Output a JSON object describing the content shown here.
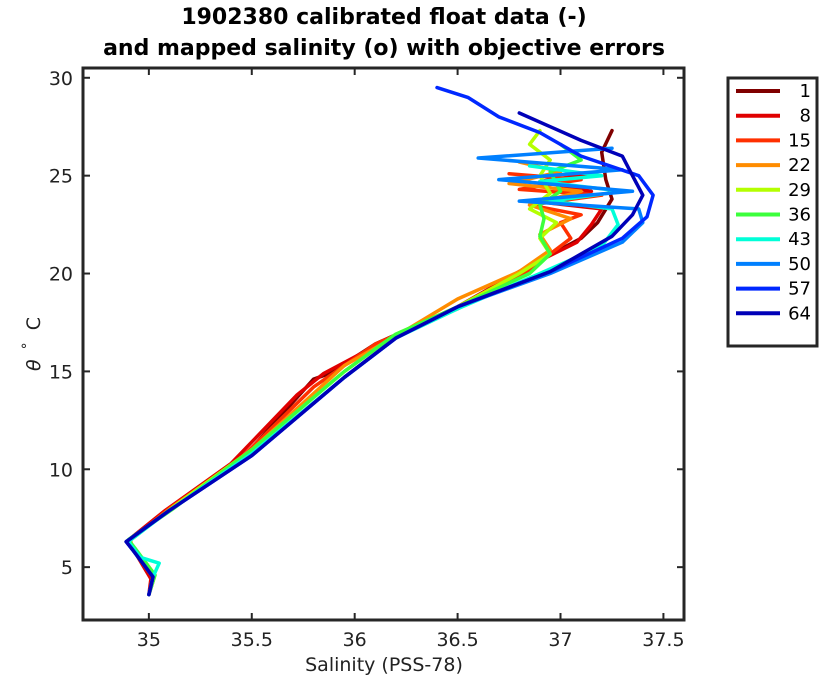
{
  "chart_data": {
    "type": "line",
    "title": "1902380 calibrated float data (-)",
    "subtitle": "and mapped salinity (o) with objective errors",
    "xlabel": "Salinity (PSS-78)",
    "ylabel_symbol": "θ",
    "ylabel_degree": "°",
    "ylabel_unit": "C",
    "xlim": [
      34.68,
      37.6
    ],
    "ylim": [
      2.3,
      30.5
    ],
    "xticks": [
      35,
      35.5,
      36,
      36.5,
      37,
      37.5
    ],
    "xtick_labels": [
      "35",
      "35.5",
      "36",
      "36.5",
      "37",
      "37.5"
    ],
    "yticks": [
      5,
      10,
      15,
      20,
      25,
      30
    ],
    "ytick_labels": [
      "5",
      "10",
      "15",
      "20",
      "25",
      "30"
    ],
    "grid": false,
    "legend_position": "outside-right",
    "series": [
      {
        "name": "1",
        "color": "#800000",
        "points": [
          [
            35.0,
            3.6
          ],
          [
            35.02,
            4.3
          ],
          [
            34.98,
            5.0
          ],
          [
            34.95,
            5.7
          ],
          [
            34.9,
            6.3
          ],
          [
            35.1,
            8.0
          ],
          [
            35.45,
            10.5
          ],
          [
            35.8,
            14.6
          ],
          [
            35.88,
            14.9
          ],
          [
            36.1,
            16.4
          ],
          [
            36.5,
            18.3
          ],
          [
            36.85,
            20.4
          ],
          [
            37.1,
            21.8
          ],
          [
            37.18,
            22.6
          ],
          [
            37.25,
            23.8
          ],
          [
            37.22,
            24.8
          ],
          [
            37.2,
            26.2
          ],
          [
            37.25,
            27.3
          ]
        ]
      },
      {
        "name": "8",
        "color": "#e00000",
        "points": [
          [
            35.0,
            3.6
          ],
          [
            35.01,
            4.4
          ],
          [
            34.97,
            5.1
          ],
          [
            34.93,
            5.8
          ],
          [
            34.89,
            6.3
          ],
          [
            35.08,
            7.9
          ],
          [
            35.4,
            10.3
          ],
          [
            35.72,
            13.8
          ],
          [
            35.85,
            14.9
          ],
          [
            36.1,
            16.3
          ],
          [
            36.5,
            18.3
          ],
          [
            36.85,
            20.4
          ],
          [
            37.08,
            21.6
          ],
          [
            37.15,
            22.5
          ],
          [
            37.2,
            23.3
          ],
          [
            36.95,
            23.6
          ],
          [
            37.15,
            24.2
          ],
          [
            36.9,
            24.7
          ],
          [
            37.15,
            25.1
          ]
        ]
      },
      {
        "name": "15",
        "color": "#ff3000",
        "points": [
          [
            35.0,
            3.6
          ],
          [
            35.02,
            4.5
          ],
          [
            34.98,
            5.2
          ],
          [
            34.92,
            5.9
          ],
          [
            34.9,
            6.3
          ],
          [
            35.1,
            8.0
          ],
          [
            35.45,
            10.6
          ],
          [
            35.8,
            14.2
          ],
          [
            36.1,
            16.4
          ],
          [
            36.5,
            18.2
          ],
          [
            36.85,
            20.2
          ],
          [
            37.05,
            21.8
          ],
          [
            37.0,
            22.6
          ],
          [
            37.1,
            23.0
          ],
          [
            36.85,
            23.5
          ],
          [
            37.2,
            24.0
          ],
          [
            36.8,
            24.3
          ],
          [
            37.1,
            24.8
          ],
          [
            36.75,
            25.1
          ]
        ]
      },
      {
        "name": "22",
        "color": "#ff8c00",
        "points": [
          [
            35.0,
            3.6
          ],
          [
            35.03,
            4.6
          ],
          [
            34.98,
            5.3
          ],
          [
            34.92,
            6.0
          ],
          [
            34.91,
            6.4
          ],
          [
            35.12,
            8.1
          ],
          [
            35.5,
            11.0
          ],
          [
            35.95,
            15.3
          ],
          [
            36.2,
            16.8
          ],
          [
            36.5,
            18.7
          ],
          [
            36.8,
            20.1
          ],
          [
            36.95,
            21.2
          ],
          [
            36.9,
            22.0
          ],
          [
            37.05,
            22.8
          ],
          [
            36.85,
            23.5
          ],
          [
            37.1,
            24.2
          ],
          [
            36.75,
            24.6
          ],
          [
            37.0,
            25.2
          ],
          [
            36.8,
            25.7
          ]
        ]
      },
      {
        "name": "29",
        "color": "#b4ff00",
        "points": [
          [
            35.0,
            3.6
          ],
          [
            35.02,
            4.5
          ],
          [
            34.97,
            5.2
          ],
          [
            34.92,
            5.9
          ],
          [
            34.9,
            6.3
          ],
          [
            35.12,
            8.1
          ],
          [
            35.5,
            11.0
          ],
          [
            35.95,
            15.0
          ],
          [
            36.2,
            16.9
          ],
          [
            36.5,
            18.3
          ],
          [
            36.8,
            20.0
          ],
          [
            36.95,
            21.0
          ],
          [
            36.9,
            21.8
          ],
          [
            36.98,
            22.6
          ],
          [
            36.85,
            23.3
          ],
          [
            36.95,
            24.1
          ],
          [
            36.9,
            25.0
          ],
          [
            36.95,
            25.8
          ],
          [
            36.85,
            26.6
          ],
          [
            36.9,
            27.3
          ]
        ]
      },
      {
        "name": "36",
        "color": "#3cff3c",
        "points": [
          [
            35.0,
            3.6
          ],
          [
            35.03,
            4.6
          ],
          [
            34.98,
            5.3
          ],
          [
            34.93,
            6.0
          ],
          [
            34.9,
            6.4
          ],
          [
            35.12,
            8.0
          ],
          [
            35.5,
            11.0
          ],
          [
            35.95,
            15.0
          ],
          [
            36.2,
            16.9
          ],
          [
            36.5,
            18.3
          ],
          [
            36.85,
            20.0
          ],
          [
            36.95,
            21.0
          ],
          [
            36.9,
            21.9
          ],
          [
            36.92,
            22.8
          ],
          [
            36.9,
            23.5
          ],
          [
            37.0,
            24.2
          ],
          [
            36.95,
            25.2
          ],
          [
            37.1,
            25.8
          ],
          [
            37.0,
            26.6
          ]
        ]
      },
      {
        "name": "43",
        "color": "#00ffd8",
        "points": [
          [
            35.0,
            3.6
          ],
          [
            35.02,
            4.5
          ],
          [
            35.05,
            5.2
          ],
          [
            34.96,
            5.5
          ],
          [
            34.9,
            6.3
          ],
          [
            35.1,
            7.9
          ],
          [
            35.5,
            10.8
          ],
          [
            35.95,
            14.7
          ],
          [
            36.2,
            16.7
          ],
          [
            36.5,
            18.2
          ],
          [
            36.9,
            20.0
          ],
          [
            37.2,
            21.4
          ],
          [
            37.28,
            22.5
          ],
          [
            37.25,
            23.3
          ],
          [
            36.95,
            23.7
          ],
          [
            37.3,
            24.2
          ],
          [
            36.9,
            24.7
          ],
          [
            37.2,
            25.0
          ],
          [
            36.85,
            25.5
          ]
        ]
      },
      {
        "name": "50",
        "color": "#0080ff",
        "points": [
          [
            35.0,
            3.6
          ],
          [
            35.02,
            4.5
          ],
          [
            34.97,
            5.2
          ],
          [
            34.92,
            5.9
          ],
          [
            34.89,
            6.3
          ],
          [
            35.1,
            7.9
          ],
          [
            35.5,
            10.7
          ],
          [
            35.95,
            14.7
          ],
          [
            36.2,
            16.7
          ],
          [
            36.5,
            18.3
          ],
          [
            36.95,
            20.0
          ],
          [
            37.3,
            21.6
          ],
          [
            37.4,
            22.6
          ],
          [
            37.38,
            23.3
          ],
          [
            36.8,
            23.7
          ],
          [
            37.35,
            24.2
          ],
          [
            36.7,
            24.8
          ],
          [
            37.3,
            25.3
          ],
          [
            36.6,
            25.9
          ],
          [
            37.25,
            26.4
          ]
        ]
      },
      {
        "name": "57",
        "color": "#0028ff",
        "points": [
          [
            35.0,
            3.6
          ],
          [
            35.02,
            4.5
          ],
          [
            34.97,
            5.2
          ],
          [
            34.92,
            5.9
          ],
          [
            34.89,
            6.3
          ],
          [
            35.1,
            7.9
          ],
          [
            35.5,
            10.7
          ],
          [
            35.95,
            14.7
          ],
          [
            36.2,
            16.7
          ],
          [
            36.5,
            18.3
          ],
          [
            36.95,
            20.1
          ],
          [
            37.3,
            21.8
          ],
          [
            37.42,
            22.9
          ],
          [
            37.45,
            24.0
          ],
          [
            37.38,
            25.0
          ],
          [
            37.1,
            26.0
          ],
          [
            36.9,
            27.2
          ],
          [
            36.7,
            28.0
          ],
          [
            36.55,
            29.0
          ],
          [
            36.4,
            29.5
          ]
        ]
      },
      {
        "name": "64",
        "color": "#0000b8",
        "points": [
          [
            35.0,
            3.6
          ],
          [
            35.02,
            4.5
          ],
          [
            34.97,
            5.2
          ],
          [
            34.92,
            5.9
          ],
          [
            34.89,
            6.3
          ],
          [
            35.1,
            7.9
          ],
          [
            35.5,
            10.7
          ],
          [
            35.95,
            14.7
          ],
          [
            36.2,
            16.7
          ],
          [
            36.5,
            18.3
          ],
          [
            36.95,
            20.1
          ],
          [
            37.25,
            21.9
          ],
          [
            37.35,
            23.0
          ],
          [
            37.4,
            24.0
          ],
          [
            37.35,
            25.0
          ],
          [
            37.3,
            26.0
          ],
          [
            37.1,
            26.8
          ],
          [
            36.95,
            27.5
          ],
          [
            36.8,
            28.2
          ]
        ]
      }
    ]
  }
}
